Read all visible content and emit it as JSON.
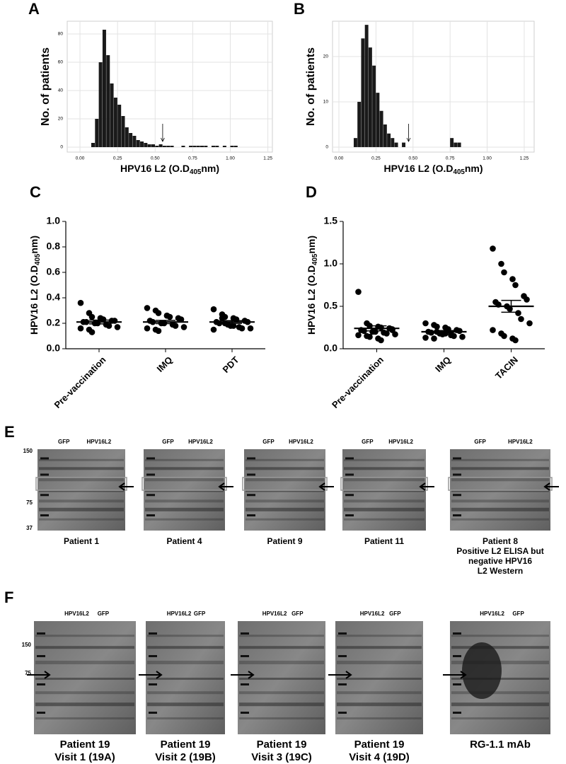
{
  "chart_data": [
    {
      "type": "histogram",
      "panel": "A",
      "ylabel": "No. of patients",
      "xlabel": {
        "main": "HPV16 L2  (O.D",
        "sub": "405",
        "end": "nm)"
      },
      "bins": [
        0.075,
        0.1,
        0.125,
        0.15,
        0.175,
        0.2,
        0.225,
        0.25,
        0.275,
        0.3,
        0.325,
        0.35,
        0.375,
        0.4,
        0.425,
        0.45,
        0.475,
        0.5,
        0.525,
        0.55,
        0.575,
        0.6,
        0.625,
        0.65,
        0.675,
        0.7,
        0.725,
        0.75,
        0.775,
        0.8,
        0.825,
        0.85,
        0.875,
        0.9,
        0.925,
        0.95,
        0.975,
        1.0,
        1.025,
        1.05,
        1.075
      ],
      "values": [
        3,
        20,
        60,
        83,
        65,
        45,
        35,
        30,
        22,
        14,
        10,
        8,
        5,
        4,
        3,
        2,
        2,
        1,
        2,
        1,
        1,
        1,
        0,
        0,
        1,
        0,
        1,
        1,
        1,
        1,
        1,
        0,
        1,
        1,
        0,
        1,
        0,
        1,
        1,
        0
      ],
      "color": "#1a1a1a",
      "arrow_x": 0.55,
      "xlim": [
        -0.085,
        1.28
      ],
      "ylim": [
        -3.5,
        89
      ],
      "xticks": [
        {
          "value": 0,
          "label": "0.00"
        },
        0.25,
        {
          "value": 0.5,
          "label": "0.50"
        },
        0.75,
        {
          "value": 1,
          "label": "1.00"
        },
        1.25
      ],
      "yticks": [
        0,
        20,
        40,
        60,
        80
      ],
      "grid": true
    },
    {
      "type": "histogram",
      "panel": "B",
      "ylabel": "No. of patients",
      "xlabel": {
        "main": "HPV16 L2  (O.D",
        "sub": "405",
        "end": "nm)"
      },
      "bins": [
        0.1,
        0.125,
        0.15,
        0.175,
        0.2,
        0.225,
        0.25,
        0.275,
        0.3,
        0.325,
        0.35,
        0.375,
        0.4,
        0.425,
        0.45,
        0.475,
        0.5,
        0.525,
        0.55,
        0.575,
        0.6,
        0.625,
        0.65,
        0.675,
        0.7,
        0.725,
        0.75,
        0.775,
        0.8,
        0.825
      ],
      "values": [
        2,
        10,
        24,
        27,
        22,
        18,
        12,
        8,
        5,
        3,
        2,
        1,
        0,
        1,
        0,
        0,
        0,
        0,
        0,
        0,
        0,
        0,
        0,
        0,
        0,
        0,
        2,
        1,
        1
      ],
      "color": "#1a1a1a",
      "arrow_x": 0.47,
      "xlim": [
        -0.043,
        1.317
      ],
      "ylim": [
        -1.1,
        27.8
      ],
      "xticks": [
        {
          "value": 0,
          "label": "0.00"
        },
        0.25,
        {
          "value": 0.5,
          "label": "0.50"
        },
        0.75,
        {
          "value": 1,
          "label": "1.00"
        },
        1.25
      ],
      "yticks": [
        0,
        10,
        20
      ],
      "grid": true
    },
    {
      "type": "dotplot",
      "panel": "C",
      "ylabel": {
        "main": "HPV16 L2  (O.D",
        "sub": "405",
        "end": "nm)"
      },
      "categories": [
        "Pre-vaccination",
        "IMQ",
        "PDT"
      ],
      "values": [
        [
          0.36,
          0.28,
          0.25,
          0.24,
          0.23,
          0.22,
          0.22,
          0.21,
          0.21,
          0.2,
          0.2,
          0.19,
          0.18,
          0.17,
          0.16,
          0.15,
          0.13,
          0.24
        ],
        [
          0.32,
          0.3,
          0.28,
          0.26,
          0.25,
          0.24,
          0.23,
          0.22,
          0.21,
          0.2,
          0.2,
          0.19,
          0.18,
          0.17,
          0.16,
          0.15,
          0.14,
          0.26
        ],
        [
          0.31,
          0.27,
          0.25,
          0.24,
          0.23,
          0.22,
          0.21,
          0.21,
          0.2,
          0.19,
          0.18,
          0.17,
          0.16,
          0.16,
          0.15,
          0.24,
          0.2,
          0.18
        ]
      ],
      "mean": [
        0.21,
        0.21,
        0.21
      ],
      "sem": [
        0.015,
        0.013,
        0.011
      ],
      "color": "#000000",
      "ylim": [
        0,
        1
      ],
      "yticks": [
        {
          "value": 0,
          "label": "0.0"
        },
        0.2,
        0.4,
        0.6,
        0.8,
        {
          "value": 1,
          "label": "1.0"
        }
      ]
    },
    {
      "type": "dotplot",
      "panel": "D",
      "ylabel": {
        "main": "HPV16 L2  (O.D",
        "sub": "405",
        "end": "nm)"
      },
      "categories": [
        "Pre-vaccination",
        "IMQ",
        "TACIN"
      ],
      "values": [
        [
          0.67,
          0.3,
          0.27,
          0.26,
          0.25,
          0.24,
          0.23,
          0.22,
          0.21,
          0.2,
          0.2,
          0.19,
          0.18,
          0.17,
          0.16,
          0.15,
          0.14,
          0.12,
          0.1,
          0.24,
          0.22
        ],
        [
          0.3,
          0.28,
          0.26,
          0.25,
          0.23,
          0.22,
          0.21,
          0.2,
          0.19,
          0.18,
          0.17,
          0.16,
          0.15,
          0.14,
          0.13,
          0.12,
          0.2,
          0.18
        ],
        [
          1.18,
          1.0,
          0.9,
          0.82,
          0.75,
          0.62,
          0.58,
          0.55,
          0.52,
          0.5,
          0.47,
          0.42,
          0.35,
          0.3,
          0.22,
          0.18,
          0.15,
          0.12,
          0.1
        ]
      ],
      "mean": [
        0.24,
        0.2,
        0.5
      ],
      "sem": [
        0.03,
        0.015,
        0.07
      ],
      "color": "#000000",
      "ylim": [
        0,
        1.5
      ],
      "yticks": [
        {
          "value": 0,
          "label": "0.0"
        },
        0.5,
        {
          "value": 1,
          "label": "1.0"
        },
        1.5
      ]
    }
  ],
  "figure_e": {
    "panel": "E",
    "markers": [
      150,
      75,
      37
    ],
    "blots": [
      {
        "lanes": [
          "GFP",
          "HPV16L2"
        ],
        "caption": [
          "Patient 1"
        ]
      },
      {
        "lanes": [
          "GFP",
          "HPV16L2"
        ],
        "caption": [
          "Patient 4"
        ]
      },
      {
        "lanes": [
          "GFP",
          "HPV16L2"
        ],
        "caption": [
          "Patient 9"
        ]
      },
      {
        "lanes": [
          "GFP",
          "HPV16L2"
        ],
        "caption": [
          "Patient 11"
        ]
      },
      {
        "lanes": [
          "GFP",
          "HPV16L2"
        ],
        "caption": [
          "Patient 8",
          "Positive L2 ELISA but",
          "negative HPV16",
          "L2 Western"
        ]
      }
    ]
  },
  "figure_f": {
    "panel": "F",
    "markers": [
      150,
      75
    ],
    "blots": [
      {
        "lanes": [
          "HPV16L2",
          "GFP"
        ],
        "caption": [
          "Patient 19",
          "Visit 1 (19A)"
        ]
      },
      {
        "lanes": [
          "HPV16L2",
          "GFP"
        ],
        "caption": [
          "Patient 19",
          "Visit 2 (19B)"
        ]
      },
      {
        "lanes": [
          "HPV16L2",
          "GFP"
        ],
        "caption": [
          "Patient 19",
          "Visit 3 (19C)"
        ]
      },
      {
        "lanes": [
          "HPV16L2",
          "GFP"
        ],
        "caption": [
          "Patient 19",
          "Visit 4 (19D)"
        ]
      },
      {
        "lanes": [
          "HPV16L2",
          "GFP"
        ],
        "caption": [
          "RG-1.1 mAb"
        ]
      }
    ]
  }
}
